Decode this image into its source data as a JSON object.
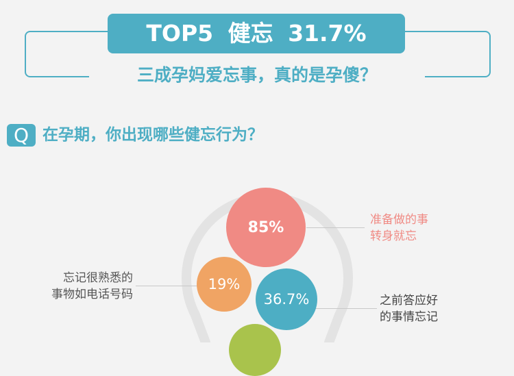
{
  "header": {
    "banner": "TOP5 健忘 31.7%",
    "subtitle": "三成孕妈爱忘事，真的是孕傻？"
  },
  "question": {
    "icon_letter": "Q",
    "text": "在孕期，你出现哪些健忘行为？"
  },
  "bubbles": [
    {
      "value": "85%",
      "label_line1": "准备做的事",
      "label_line2": "转身就忘",
      "color": "#f08a84"
    },
    {
      "value": "19%",
      "label_line1": "忘记很熟悉的",
      "label_line2": "事物如电话号码",
      "color": "#f0a464"
    },
    {
      "value": "36.7%",
      "label_line1": "之前答应好",
      "label_line2": "的事情忘记",
      "color": "#4daec4"
    },
    {
      "color": "#a9c34c"
    }
  ],
  "colors": {
    "accent": "#4eaec4",
    "bulb_outline": "#e3e3e3",
    "label_pink": "#f08a84"
  }
}
